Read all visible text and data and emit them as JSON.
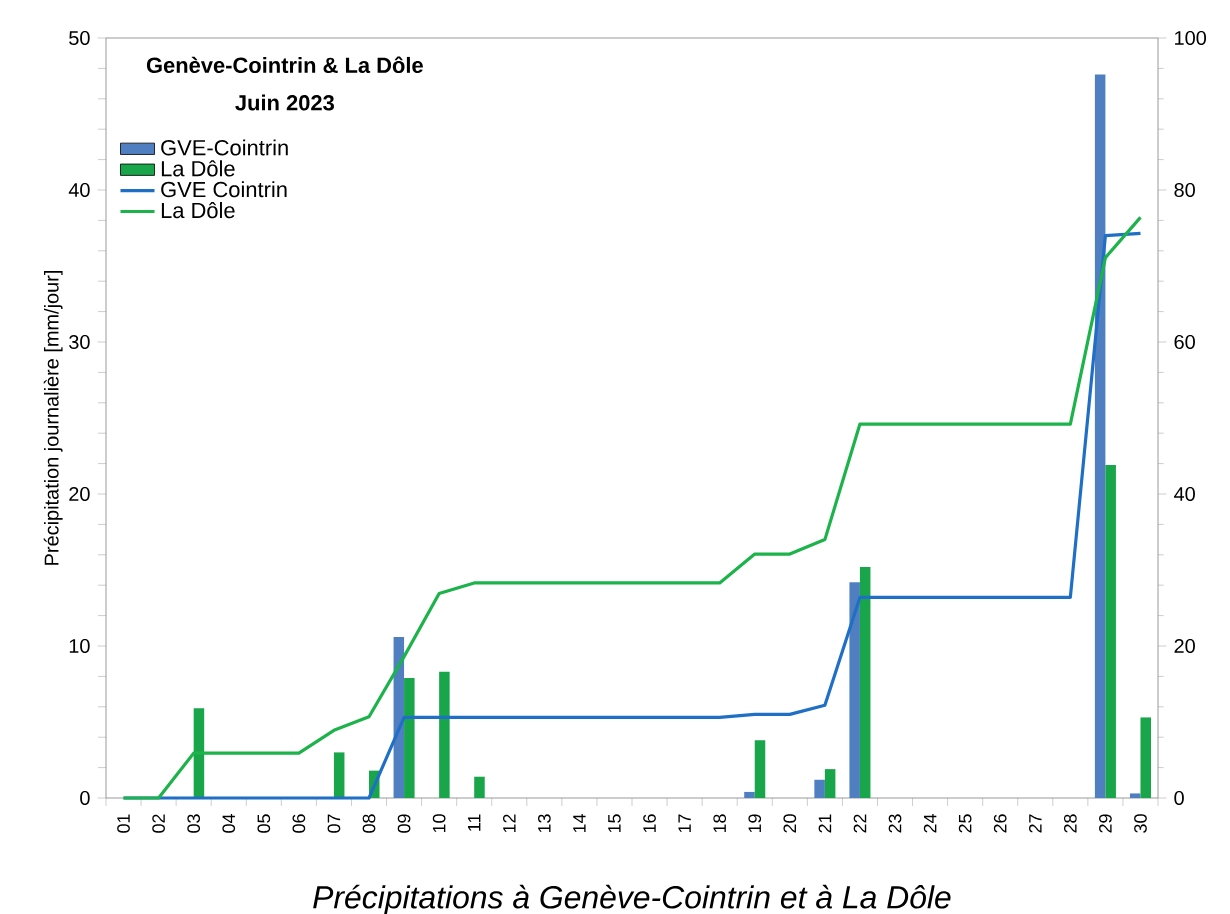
{
  "chart_data": {
    "type": "bar",
    "title": "Genève-Cointrin & La Dôle",
    "subtitle": "Juin 2023",
    "ylabel": "Précipitation journalière [mm/jour]",
    "categories": [
      "01",
      "02",
      "03",
      "04",
      "05",
      "06",
      "07",
      "08",
      "09",
      "10",
      "11",
      "12",
      "13",
      "14",
      "15",
      "16",
      "17",
      "18",
      "19",
      "20",
      "21",
      "22",
      "23",
      "24",
      "25",
      "26",
      "27",
      "28",
      "29",
      "30"
    ],
    "series": [
      {
        "name": "GVE-Cointrin",
        "color": "#4f7fc0",
        "values": [
          0,
          0,
          0,
          0,
          0,
          0,
          0,
          0,
          10.6,
          0,
          0,
          0,
          0,
          0,
          0,
          0,
          0,
          0,
          0.4,
          0,
          1.2,
          14.2,
          0,
          0,
          0,
          0,
          0,
          0,
          47.6,
          0.3
        ]
      },
      {
        "name": "La Dôle",
        "color": "#19a64a",
        "values": [
          0,
          0,
          5.9,
          0,
          0,
          0,
          3.0,
          1.8,
          7.9,
          8.3,
          1.4,
          0,
          0,
          0,
          0,
          0,
          0,
          0,
          3.8,
          0,
          1.9,
          15.2,
          0,
          0,
          0,
          0,
          0,
          0,
          21.9,
          5.3
        ]
      },
      {
        "name": "GVE Cointrin",
        "type": "line",
        "axis": "y2",
        "color": "#1f6fc6",
        "values": [
          0,
          0,
          0,
          0,
          0,
          0,
          0,
          0,
          10.6,
          10.6,
          10.6,
          10.6,
          10.6,
          10.6,
          10.6,
          10.6,
          10.6,
          10.6,
          11.0,
          11.0,
          12.2,
          26.4,
          26.4,
          26.4,
          26.4,
          26.4,
          26.4,
          26.4,
          74.0,
          74.3
        ]
      },
      {
        "name": "La Dôle",
        "type": "line",
        "axis": "y2",
        "color": "#1cb34a",
        "values": [
          0,
          0,
          5.9,
          5.9,
          5.9,
          5.9,
          8.9,
          10.7,
          18.6,
          26.9,
          28.3,
          28.3,
          28.3,
          28.3,
          28.3,
          28.3,
          28.3,
          28.3,
          32.1,
          32.1,
          34.0,
          49.2,
          49.2,
          49.2,
          49.2,
          49.2,
          49.2,
          49.2,
          71.1,
          76.4
        ]
      }
    ],
    "ylim": [
      0,
      50
    ],
    "yticks": [
      0,
      10,
      20,
      30,
      40,
      50
    ],
    "y2lim": [
      0,
      100
    ],
    "y2ticks": [
      0,
      20,
      40,
      60,
      80,
      100
    ],
    "legend": "top left",
    "annotations": [
      "Précipitations à Genève-Cointrin et à La Dôle"
    ]
  }
}
